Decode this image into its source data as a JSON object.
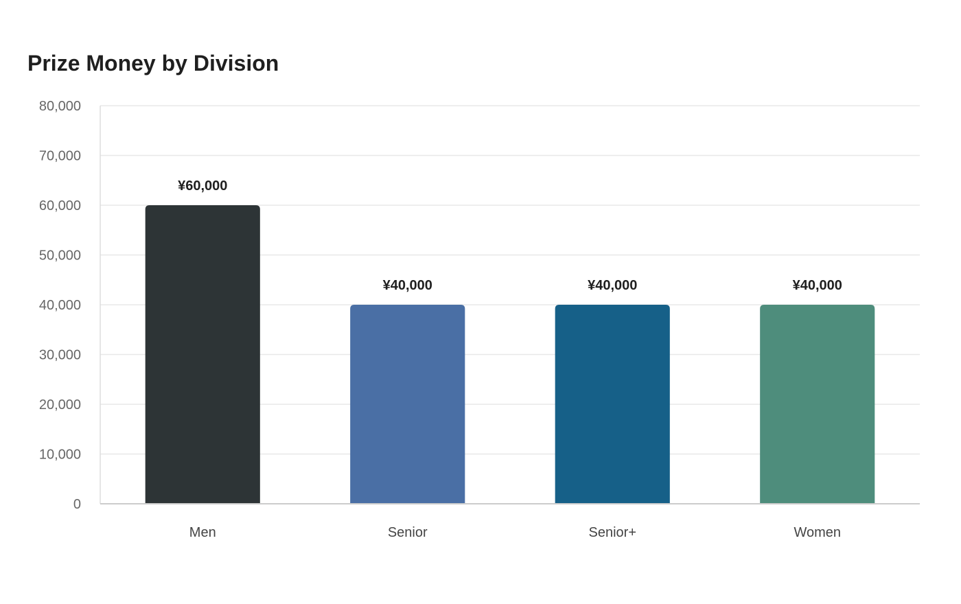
{
  "chart_data": {
    "type": "bar",
    "title": "Prize Money by Division",
    "xlabel": "",
    "ylabel": "",
    "categories": [
      "Men",
      "Senior",
      "Senior+",
      "Women"
    ],
    "values": [
      60000,
      40000,
      40000,
      40000
    ],
    "data_labels": [
      "¥60,000",
      "¥40,000",
      "¥40,000",
      "¥40,000"
    ],
    "colors": [
      "#2d3436",
      "#4a6fa5",
      "#166088",
      "#4e8d7c"
    ],
    "ylim": [
      0,
      80000
    ],
    "yticks": [
      0,
      10000,
      20000,
      30000,
      40000,
      50000,
      60000,
      70000,
      80000
    ],
    "ytick_labels": [
      "0",
      "10,000",
      "20,000",
      "30,000",
      "40,000",
      "50,000",
      "60,000",
      "70,000",
      "80,000"
    ],
    "grid": true,
    "legend": "none"
  }
}
